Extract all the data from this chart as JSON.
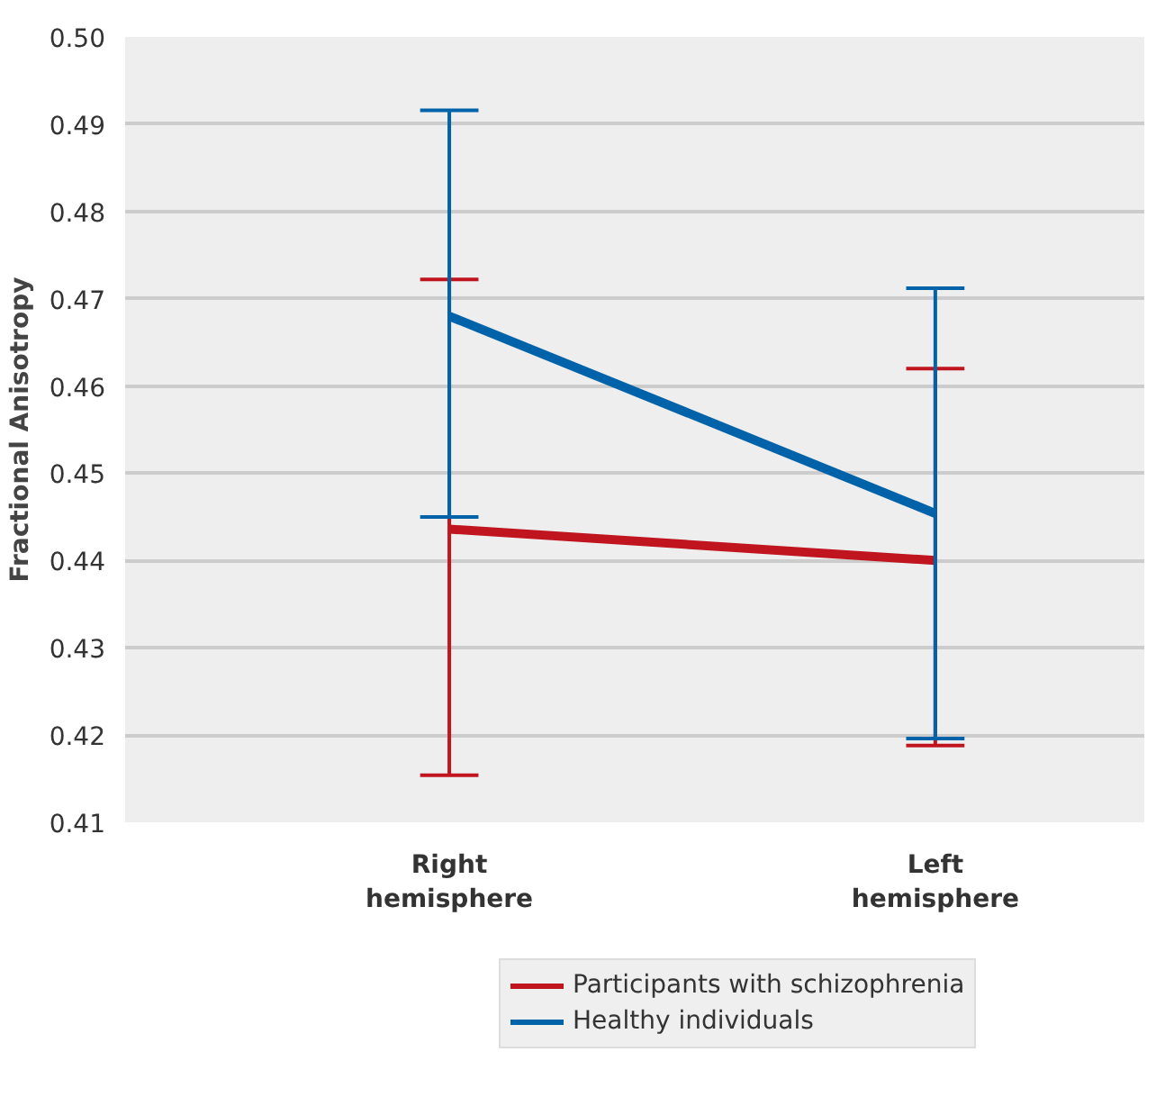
{
  "chart_data": {
    "type": "line",
    "ylabel": "Fractional Anisotropy",
    "categories": [
      "Right\nhemisphere",
      "Left\nhemisphere"
    ],
    "series": [
      {
        "name": "Participants with schizophrenia",
        "color": "#c0141e",
        "values": [
          0.4436,
          0.44
        ],
        "errors": [
          [
            0.4154,
            0.4722
          ],
          [
            0.4188,
            0.462
          ]
        ]
      },
      {
        "name": "Healthy individuals",
        "color": "#0062a8",
        "values": [
          0.468,
          0.4454
        ],
        "errors": [
          [
            0.445,
            0.4916
          ],
          [
            0.4196,
            0.4712
          ]
        ]
      }
    ],
    "ylim": [
      0.41,
      0.5
    ],
    "yticks": [
      0.41,
      0.42,
      0.43,
      0.44,
      0.45,
      0.46,
      0.47,
      0.48,
      0.49,
      {
        "value": 0.5,
        "label": "0.50"
      }
    ],
    "grid": "y",
    "legend": "bottom",
    "marker": "none",
    "line_style": "solid"
  }
}
